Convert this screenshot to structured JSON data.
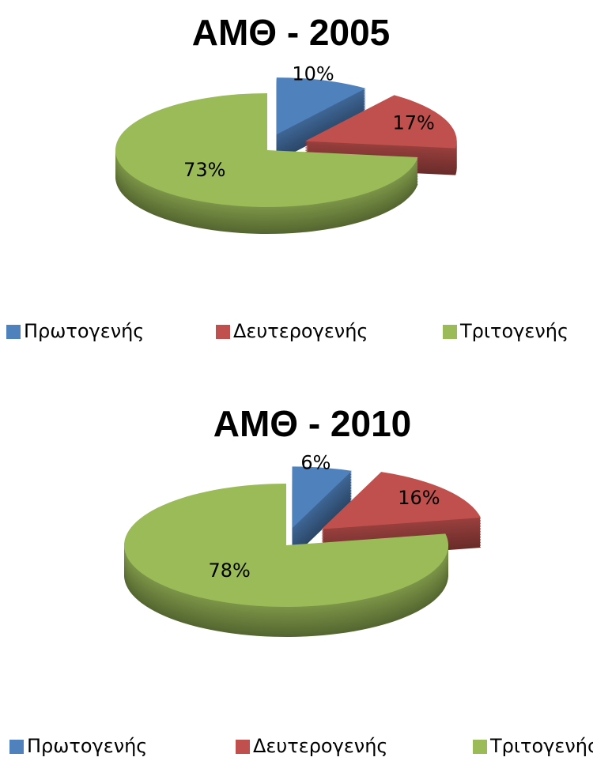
{
  "chart_data": [
    {
      "type": "pie",
      "title": "ΑΜΘ - 2005",
      "categories": [
        "Πρωτογενής",
        "Δευτερογενής",
        "Τριτογενής"
      ],
      "values": [
        10,
        17,
        73
      ],
      "value_labels": [
        "10%",
        "17%",
        "73%"
      ],
      "colors": [
        "#4f81bd",
        "#c0504d",
        "#9bbb59"
      ],
      "legend": "bottom"
    },
    {
      "type": "pie",
      "title": "ΑΜΘ - 2010",
      "categories": [
        "Πρωτογενής",
        "Δευτερογενής",
        "Τριτογενής"
      ],
      "values": [
        6,
        16,
        78
      ],
      "value_labels": [
        "6%",
        "16%",
        "78%"
      ],
      "colors": [
        "#4f81bd",
        "#c0504d",
        "#9bbb59"
      ],
      "legend": "bottom"
    }
  ]
}
